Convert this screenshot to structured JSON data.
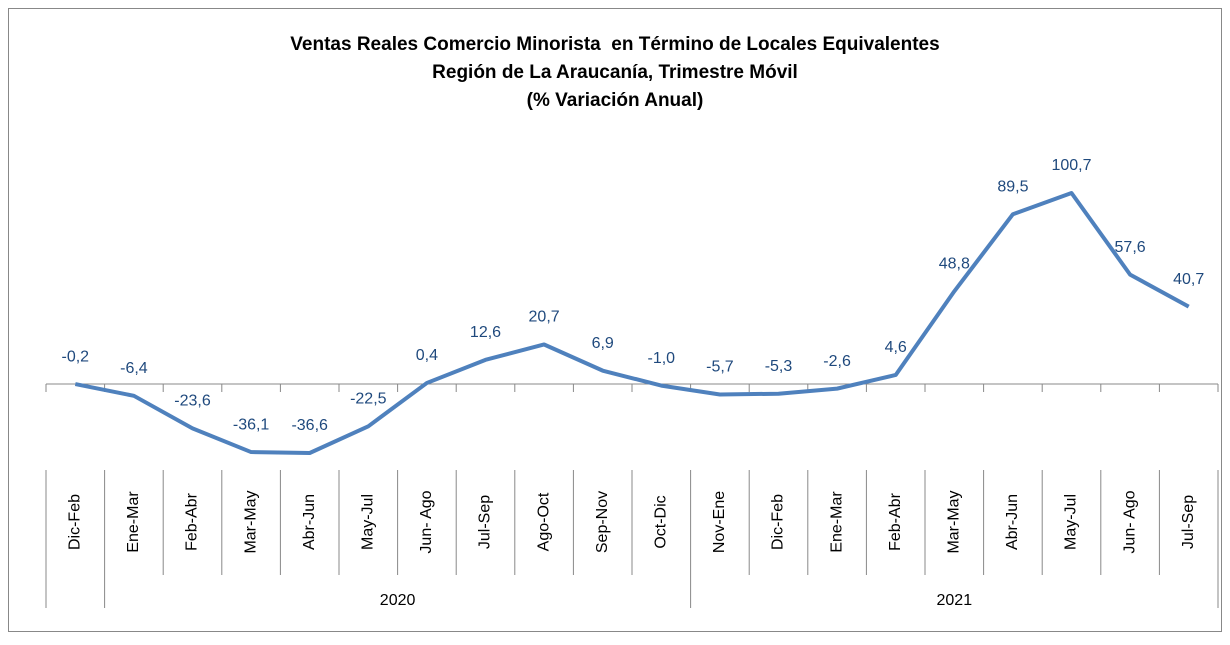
{
  "chart_data": {
    "type": "line",
    "title": [
      "Ventas Reales Comercio Minorista  en Término de Locales Equivalentes",
      "Región de La Araucanía, Trimestre Móvil",
      "(% Variación Anual)"
    ],
    "categories": [
      "Dic-Feb",
      "Ene-Mar",
      "Feb-Abr",
      "Mar-May",
      "Abr-Jun",
      "May-Jul",
      "Jun- Ago",
      "Jul-Sep",
      "Ago-Oct",
      "Sep-Nov",
      "Oct-Dic",
      "Nov-Ene",
      "Dic-Feb",
      "Ene-Mar",
      "Feb-Abr",
      "Mar-May",
      "Abr-Jun",
      "May-Jul",
      "Jun- Ago",
      "Jul-Sep"
    ],
    "years": [
      null,
      "2020",
      "2020",
      "2020",
      "2020",
      "2020",
      "2020",
      "2020",
      "2020",
      "2020",
      "2020",
      "2021",
      "2021",
      "2021",
      "2021",
      "2021",
      "2021",
      "2021",
      "2021",
      "2021"
    ],
    "series": [
      {
        "color": "#4f81bd",
        "values": [
          -0.2,
          -6.4,
          -23.6,
          -36.1,
          -36.6,
          -22.5,
          0.4,
          12.6,
          20.7,
          6.9,
          -1.0,
          -5.7,
          -5.3,
          -2.6,
          4.6,
          48.8,
          89.5,
          100.7,
          57.6,
          40.7
        ],
        "value_labels": [
          "-0,2",
          "-6,4",
          "-23,6",
          "-36,1",
          "-36,6",
          "-22,5",
          "0,4",
          "12,6",
          "20,7",
          "6,9",
          "-1,0",
          "-5,7",
          "-5,3",
          "-2,6",
          "4,6",
          "48,8",
          "89,5",
          "100,7",
          "57,6",
          "40,7"
        ]
      }
    ]
  }
}
